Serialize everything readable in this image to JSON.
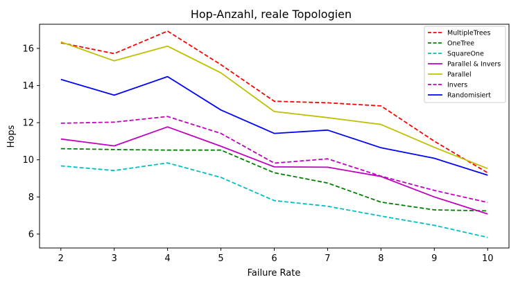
{
  "chart_data": {
    "type": "line",
    "title": "Hop-Anzahl, reale Topologien",
    "xlabel": "Failure Rate",
    "ylabel": "Hops",
    "x": [
      2,
      3,
      4,
      5,
      6,
      7,
      8,
      9,
      10
    ],
    "xlim": [
      1.6,
      10.4
    ],
    "ylim": [
      5.25,
      17.3
    ],
    "xticks": [
      2,
      3,
      4,
      5,
      6,
      7,
      8,
      9,
      10
    ],
    "yticks": [
      6,
      8,
      10,
      12,
      14,
      16
    ],
    "grid": false,
    "legend_position": "top-right",
    "series": [
      {
        "name": "MultipleTrees",
        "color": "#ff0000",
        "dash": "dashed",
        "values": [
          16.3,
          15.72,
          16.93,
          15.12,
          13.15,
          13.07,
          12.9,
          11.0,
          9.3
        ]
      },
      {
        "name": "OneTree",
        "color": "#008000",
        "dash": "dashed",
        "values": [
          10.6,
          10.55,
          10.52,
          10.52,
          9.3,
          8.75,
          7.72,
          7.3,
          7.25
        ]
      },
      {
        "name": "SquareOne",
        "color": "#00bfbf",
        "dash": "dashed",
        "values": [
          9.67,
          9.42,
          9.83,
          9.05,
          7.8,
          7.5,
          6.97,
          6.47,
          5.82
        ]
      },
      {
        "name": "Parallel & Invers",
        "color": "#bf00bf",
        "dash": "solid",
        "values": [
          11.12,
          10.75,
          11.77,
          10.73,
          9.62,
          9.6,
          9.1,
          8.0,
          7.08
        ]
      },
      {
        "name": "Parallel",
        "color": "#bfbf00",
        "dash": "solid",
        "values": [
          16.35,
          15.33,
          16.12,
          14.68,
          12.6,
          12.27,
          11.9,
          10.67,
          9.53
        ]
      },
      {
        "name": "Invers",
        "color": "#bf00bf",
        "dash": "dashed",
        "values": [
          11.97,
          12.03,
          12.33,
          11.42,
          9.82,
          10.05,
          9.12,
          8.35,
          7.7
        ]
      },
      {
        "name": "Randomisiert",
        "color": "#0000ff",
        "dash": "solid",
        "values": [
          14.33,
          13.48,
          14.48,
          12.68,
          11.42,
          11.6,
          10.65,
          10.08,
          9.17
        ]
      }
    ]
  }
}
